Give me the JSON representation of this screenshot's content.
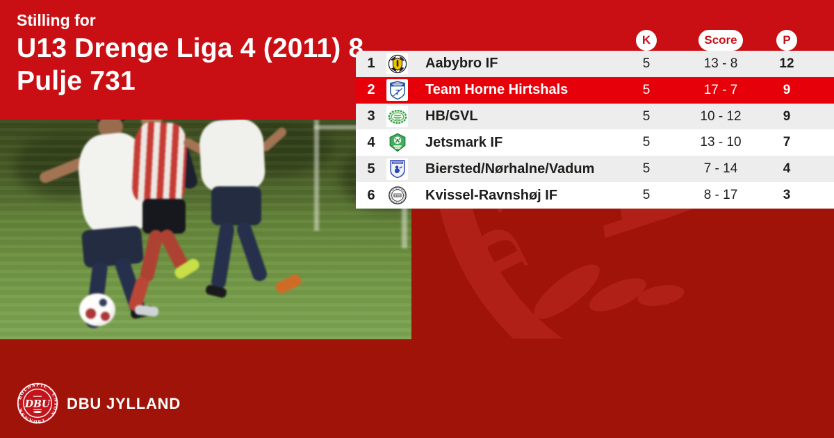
{
  "colors": {
    "background_dark_red": "#A01309",
    "header_red": "#C90F14",
    "highlight_row_red": "#E60009",
    "row_gray": "#EDEDED",
    "row_white": "#FFFFFF",
    "badge_text_red": "#C41018",
    "watermark_red": "#B02016"
  },
  "header": {
    "eyebrow": "Stilling for",
    "title_line1": "U13 Drenge Liga 4 (2011) 8..",
    "title_line2": "Pulje 731"
  },
  "standings": {
    "columns": [
      {
        "key": "k",
        "label": "K"
      },
      {
        "key": "score",
        "label": "Score"
      },
      {
        "key": "p",
        "label": "P"
      }
    ],
    "rows": [
      {
        "rank": "1",
        "team": "Aabybro IF",
        "logo": "aabybro-if-crest",
        "k": "5",
        "score": "13 - 8",
        "p": "12",
        "highlight": false
      },
      {
        "rank": "2",
        "team": "Team Horne Hirtshals",
        "logo": "team-horne-hirtshals-crest",
        "k": "5",
        "score": "17 - 7",
        "p": "9",
        "highlight": true
      },
      {
        "rank": "3",
        "team": "HB/GVL",
        "logo": "hb-gvl-crest",
        "k": "5",
        "score": "10 - 12",
        "p": "9",
        "highlight": false
      },
      {
        "rank": "4",
        "team": "Jetsmark IF",
        "logo": "jetsmark-if-crest",
        "k": "5",
        "score": "13 - 10",
        "p": "7",
        "highlight": false
      },
      {
        "rank": "5",
        "team": "Biersted/Nørhalne/Vadum",
        "logo": "biersted-norhalne-vadum-crest",
        "k": "5",
        "score": "7 - 14",
        "p": "4",
        "highlight": false
      },
      {
        "rank": "6",
        "team": "Kvissel-Ravnshøj IF",
        "logo": "kvissel-ravnshoj-if-crest",
        "k": "5",
        "score": "8 - 17",
        "p": "3",
        "highlight": false
      }
    ]
  },
  "watermark": {
    "ring_text": "DANSK BOLDSPIL-UNION",
    "center_text": "DBU"
  },
  "footer": {
    "brand": "DBU JYLLAND",
    "crest_ring_text": "DANSK · BOLDSPIL · UNION · 1889 ·",
    "crest_center_text": "DBU"
  }
}
